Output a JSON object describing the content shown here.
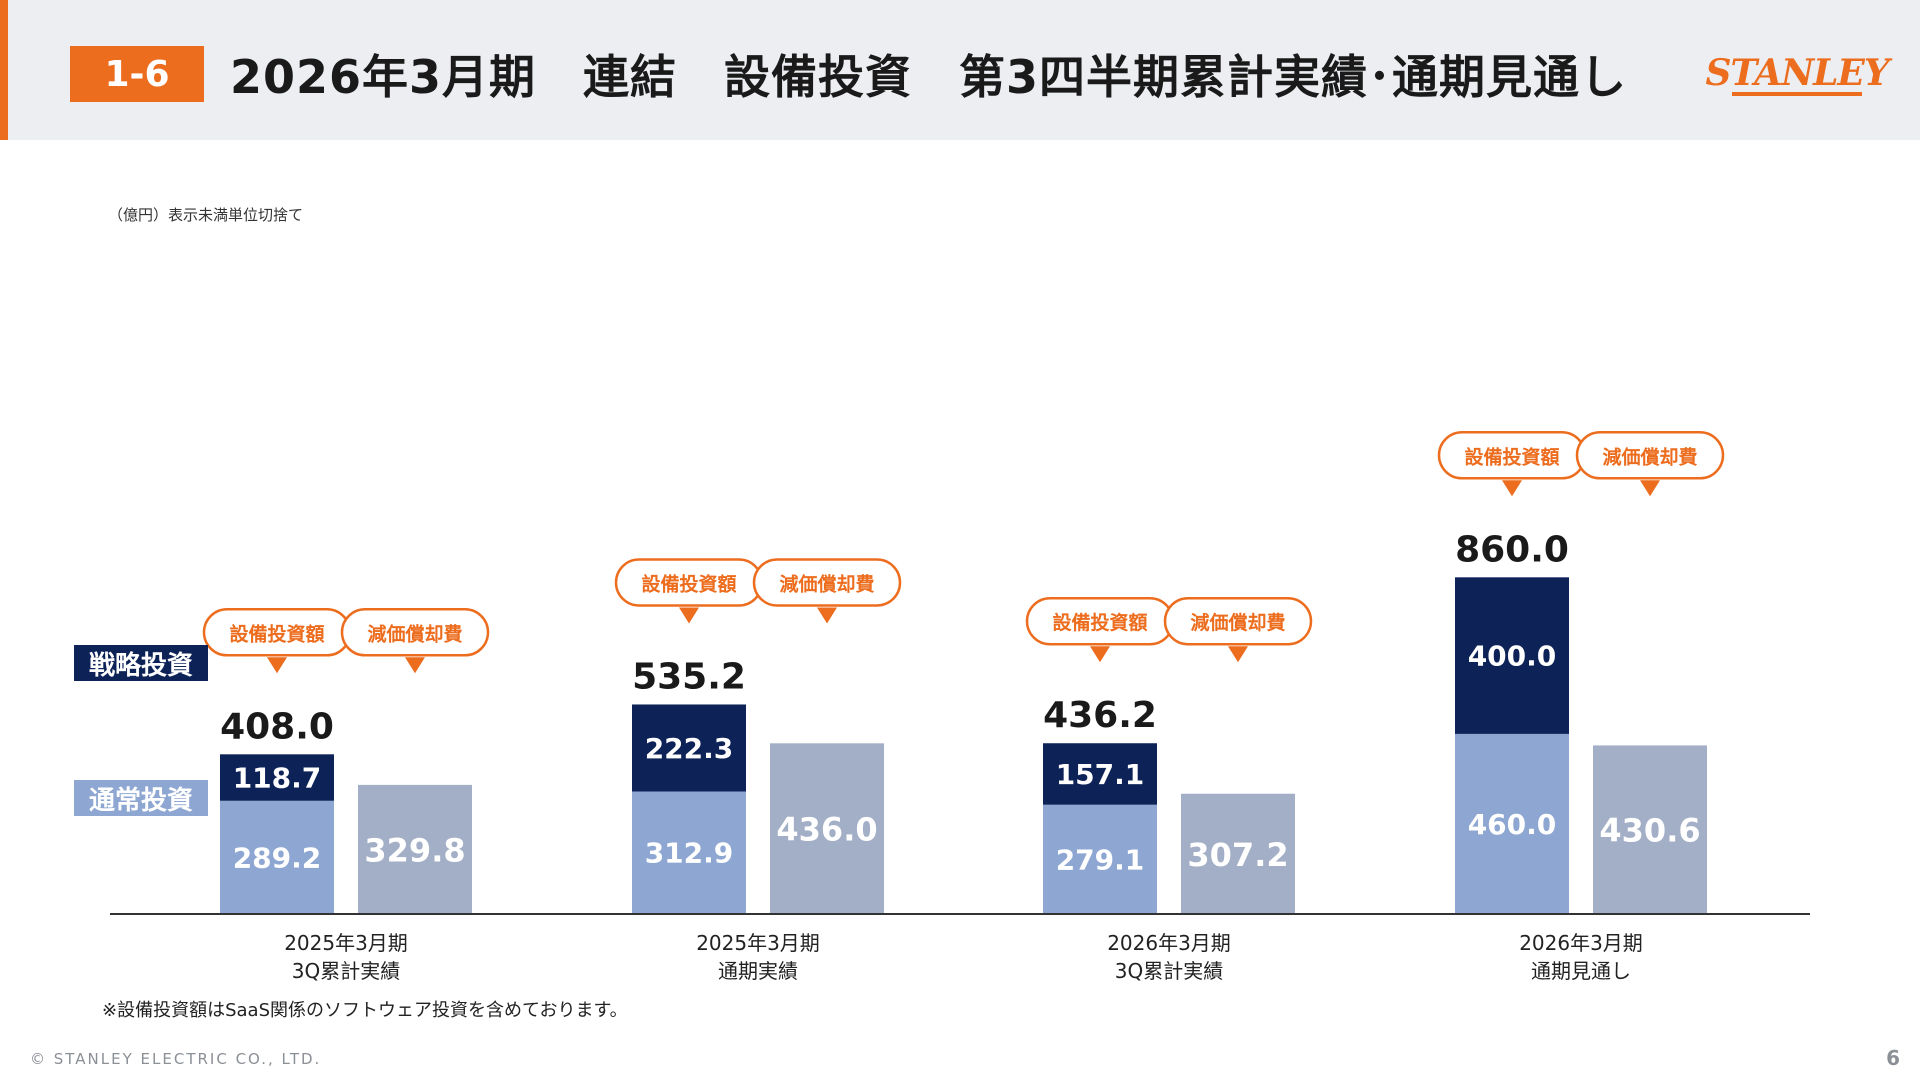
{
  "header": {
    "badge": "1-6",
    "title": "2026年3月期　連結　設備投資　第3四半期累計実績･通期見通し",
    "logo": "STANLEY"
  },
  "unit_note": "（億円）表示未満単位切捨て",
  "legend": {
    "strategic": "戦略投資",
    "normal": "通常投資"
  },
  "callouts": {
    "capex": "設備投資額",
    "depreciation": "減価償却費"
  },
  "footnote": "※設備投資額はSaaS関係のソフトウェア投資を含めております。",
  "copyright": "© STANLEY ELECTRIC CO., LTD.",
  "page_number": "6",
  "colors": {
    "accent": "#ed6d1f",
    "strategic": "#0d2358",
    "normal": "#8ea7d2",
    "depreciation": "#a3afc6",
    "axis": "#333333"
  },
  "chart_data": {
    "type": "bar",
    "stacked": true,
    "title": "",
    "xlabel": "",
    "ylabel": "",
    "ylim": [
      0,
      900
    ],
    "categories": [
      [
        "2025年3月期",
        "3Q累計実績"
      ],
      [
        "2025年3月期",
        "通期実績"
      ],
      [
        "2026年3月期",
        "3Q累計実績"
      ],
      [
        "2026年3月期",
        "通期見通し"
      ]
    ],
    "capex_totals_labels": [
      "408.0",
      "535.2",
      "436.2",
      "860.0"
    ],
    "series": [
      {
        "name": "通常投資",
        "group": "設備投資額",
        "values": [
          289.2,
          312.9,
          279.1,
          460.0
        ],
        "labels": [
          "289.2",
          "312.9",
          "279.1",
          "460.0"
        ]
      },
      {
        "name": "戦略投資",
        "group": "設備投資額",
        "values": [
          118.7,
          222.3,
          157.1,
          400.0
        ],
        "labels": [
          "118.7",
          "222.3",
          "157.1",
          "400.0"
        ]
      },
      {
        "name": "減価償却費",
        "group": "減価償却費",
        "values": [
          329.8,
          436.0,
          307.2,
          430.6
        ],
        "labels": [
          "329.8",
          "436.0",
          "307.2",
          "430.6"
        ]
      }
    ]
  }
}
